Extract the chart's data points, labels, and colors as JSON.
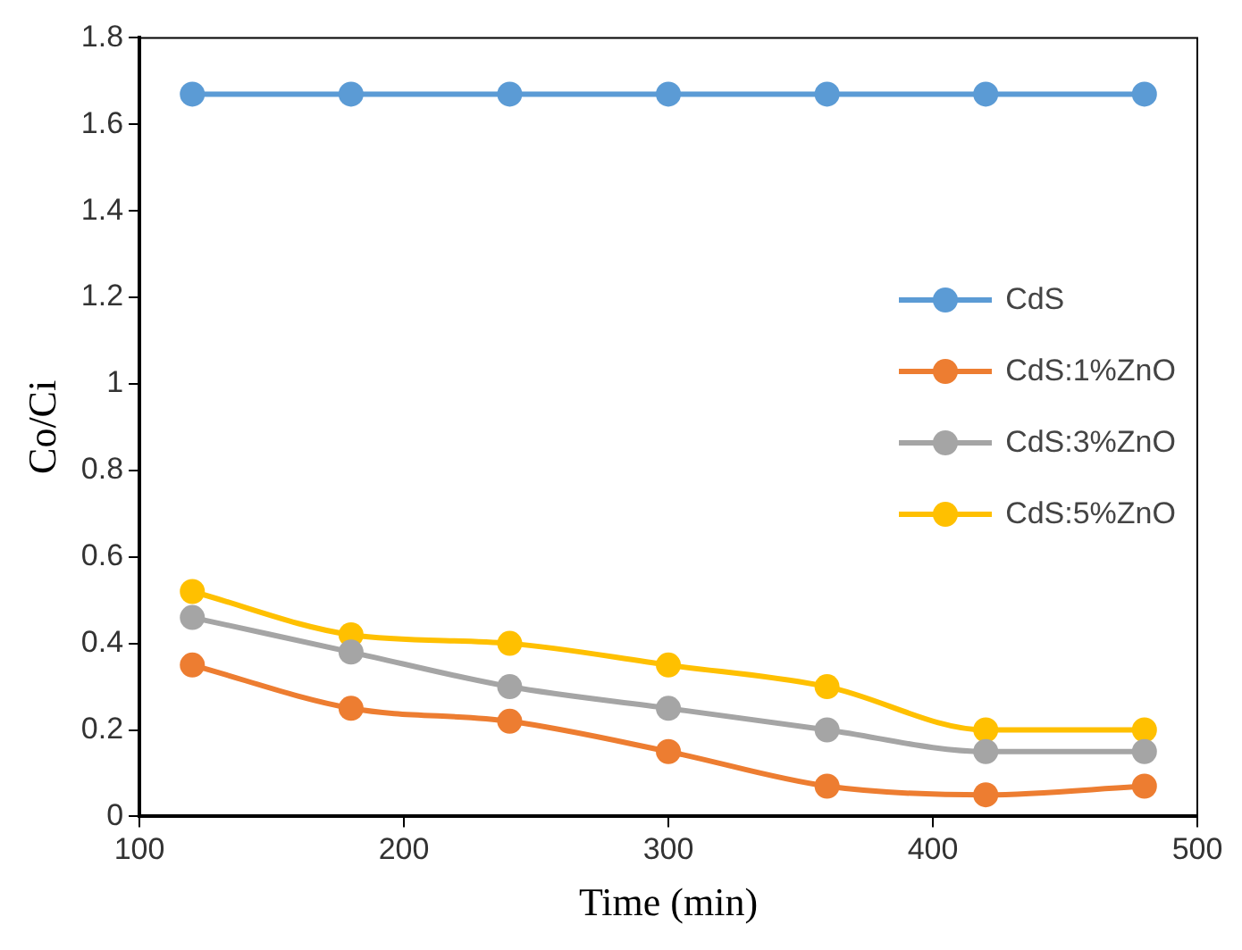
{
  "chart_data": {
    "type": "line",
    "xlabel": "Time (min)",
    "ylabel": "Co/Ci",
    "x": [
      120,
      180,
      240,
      300,
      360,
      420,
      480
    ],
    "series": [
      {
        "name": "CdS",
        "color": "#5b9bd5",
        "values": [
          1.67,
          1.67,
          1.67,
          1.67,
          1.67,
          1.67,
          1.67
        ]
      },
      {
        "name": "CdS:1%ZnO",
        "color": "#ed7d31",
        "values": [
          0.35,
          0.25,
          0.22,
          0.15,
          0.07,
          0.05,
          0.07
        ]
      },
      {
        "name": "CdS:3%ZnO",
        "color": "#a5a5a5",
        "values": [
          0.46,
          0.38,
          0.3,
          0.25,
          0.2,
          0.15,
          0.15
        ]
      },
      {
        "name": "CdS:5%ZnO",
        "color": "#ffc000",
        "values": [
          0.52,
          0.42,
          0.4,
          0.35,
          0.3,
          0.2,
          0.2
        ]
      }
    ],
    "xlim": [
      100,
      500
    ],
    "xticks": [
      100,
      200,
      300,
      400,
      500
    ],
    "ylim": [
      0,
      1.8
    ],
    "yticks": [
      0,
      0.2,
      0.4,
      0.6,
      0.8,
      1,
      1.2,
      1.4,
      1.6,
      1.8
    ],
    "grid": false,
    "legend": "right",
    "marker": "circle",
    "line_style": "solid"
  }
}
